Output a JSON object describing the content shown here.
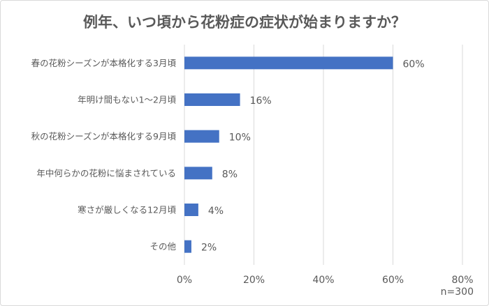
{
  "chart_data": {
    "type": "bar",
    "orientation": "horizontal",
    "title": "例年、いつ頃から花粉症の症状が始まりますか？",
    "categories": [
      "春の花粉シーズンが本格化する3月頃",
      "年明け間もない1～2月頃",
      "秋の花粉シーズンが本格化する9月頃",
      "年中何らかの花粉に悩まされている",
      "寒さが厳しくなる12月頃",
      "その他"
    ],
    "values": [
      60,
      16,
      10,
      8,
      4,
      2
    ],
    "data_labels": [
      "60%",
      "16%",
      "10%",
      "8%",
      "4%",
      "2%"
    ],
    "xlim": [
      0,
      80
    ],
    "xticks": [
      0,
      20,
      40,
      60,
      80
    ],
    "xtick_labels": [
      "0%",
      "20%",
      "40%",
      "60%",
      "80%"
    ],
    "grid": true,
    "bar_color": "#4472c4",
    "note": "n=300"
  }
}
